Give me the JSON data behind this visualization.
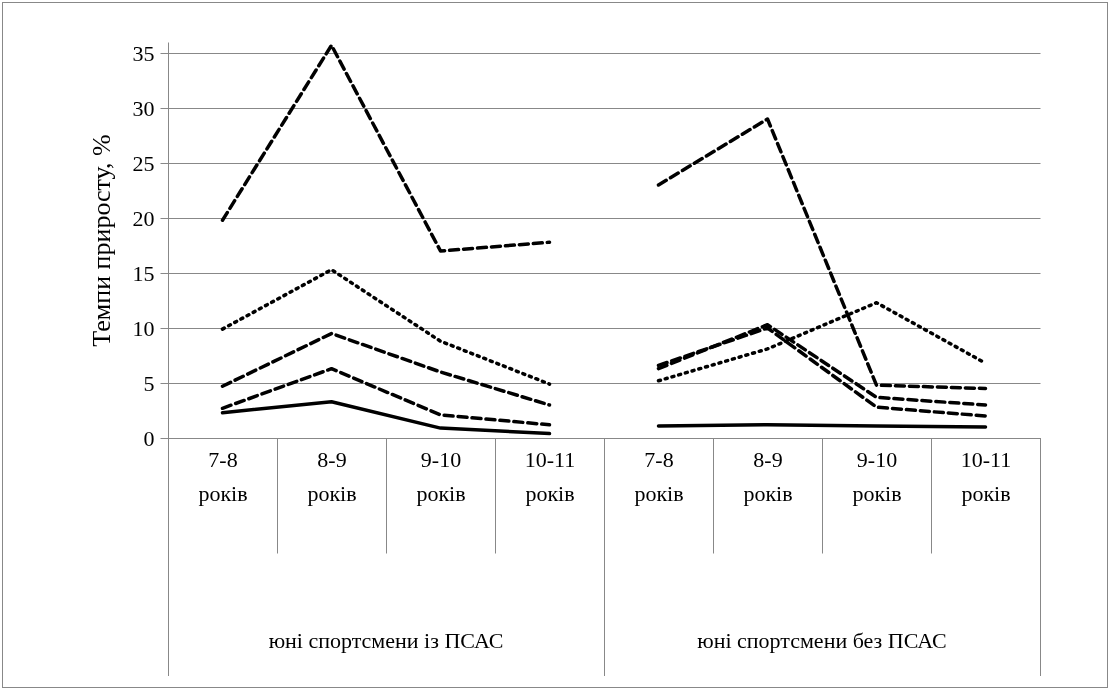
{
  "chart_data": {
    "type": "line",
    "ylabel": "Темпи приросту, %",
    "categories": [
      "7-8 років",
      "8-9 років",
      "9-10 років",
      "10-11 років",
      "7-8 років",
      "8-9 років",
      "9-10 років",
      "10-11 років"
    ],
    "series": [
      {
        "color": "#000000",
        "line_style": "solid",
        "values": [
          2.3,
          3.3,
          0.9,
          0.4,
          null,
          null,
          null,
          null
        ]
      },
      {
        "color": "#000000",
        "line_style": "dashed",
        "values": [
          2.7,
          6.3,
          2.1,
          1.2,
          null,
          null,
          null,
          null
        ]
      },
      {
        "color": "#000000",
        "line_style": "dashed",
        "values": [
          4.7,
          9.5,
          6.0,
          3.0,
          null,
          null,
          null,
          null
        ]
      },
      {
        "color": "#000000",
        "line_style": "dotted",
        "values": [
          9.9,
          15.3,
          8.8,
          4.9,
          null,
          null,
          null,
          null
        ]
      },
      {
        "color": "#000000",
        "line_style": "dashed",
        "values": [
          19.8,
          35.7,
          17.0,
          17.8,
          null,
          null,
          null,
          null
        ]
      },
      {
        "color": "#000000",
        "line_style": "solid",
        "values": [
          null,
          null,
          null,
          null,
          1.1,
          1.2,
          1.1,
          1.0
        ]
      },
      {
        "color": "#000000",
        "line_style": "dashed",
        "values": [
          null,
          null,
          null,
          null,
          6.3,
          10.3,
          3.7,
          3.0
        ]
      },
      {
        "color": "#000000",
        "line_style": "dashed",
        "values": [
          null,
          null,
          null,
          null,
          6.6,
          10.0,
          2.8,
          2.0
        ]
      },
      {
        "color": "#000000",
        "line_style": "dotted",
        "values": [
          null,
          null,
          null,
          null,
          5.2,
          8.1,
          12.3,
          6.8
        ]
      },
      {
        "color": "#000000",
        "line_style": "dashed",
        "values": [
          null,
          null,
          null,
          null,
          23.0,
          29.0,
          4.8,
          4.5
        ]
      }
    ],
    "annotations": [
      "юні спортсмени із ПСАС",
      "юні спортсмени без ПСАС"
    ],
    "ylim": [
      0,
      36
    ],
    "yticks": [
      0,
      5,
      10,
      15,
      20,
      25,
      30,
      35
    ],
    "grid": "y"
  }
}
